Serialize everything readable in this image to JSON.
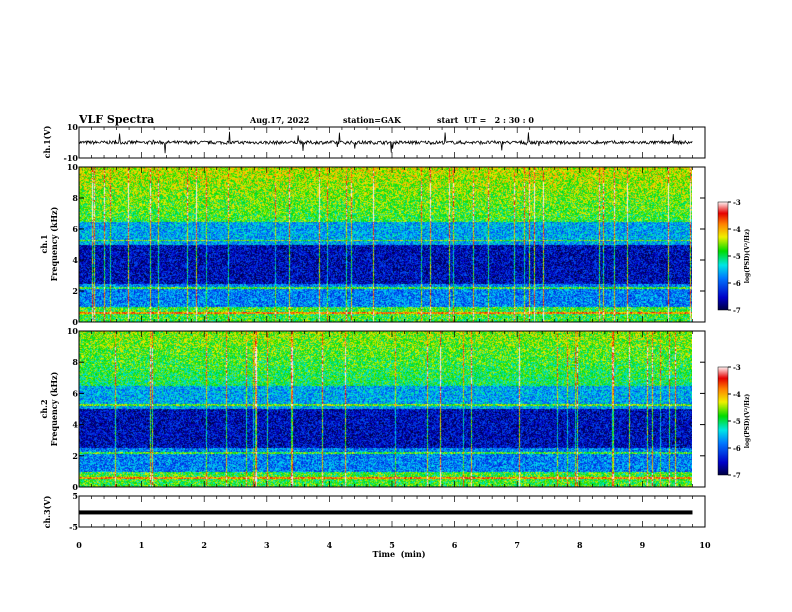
{
  "header": {
    "title": "VLF Spectra",
    "date": "Aug.17, 2022",
    "station": "station=GAK",
    "start": "start  UT =   2 : 30 : 0"
  },
  "chart_data": [
    {
      "type": "line",
      "name": "ch1 waveform",
      "ylabel": "ch.1(V)",
      "ylim": [
        -10,
        10
      ],
      "yticks": [
        "10",
        "-10"
      ],
      "xlim": [
        0,
        10
      ],
      "data_end_min": 9.8,
      "baseline_value": 0
    },
    {
      "type": "heatmap",
      "name": "ch1 spectrogram",
      "ylabel": "ch.1\nFrequency (kHz)",
      "ylabel_line1": "ch.1",
      "ylabel_line2": "Frequency (kHz)",
      "ylim": [
        0,
        10
      ],
      "yticks": [
        "10",
        "8",
        "6",
        "4",
        "2",
        "0"
      ],
      "colorbar": {
        "label": "log(PSD)(V²/Hz)",
        "range": [
          -7,
          -3
        ],
        "ticks": [
          "-3",
          "-4",
          "-5",
          "-6",
          "-7"
        ]
      }
    },
    {
      "type": "heatmap",
      "name": "ch2 spectrogram",
      "ylabel_line1": "ch.2",
      "ylabel_line2": "Frequency (kHz)",
      "ylim": [
        0,
        10
      ],
      "yticks": [
        "10",
        "8",
        "6",
        "4",
        "2",
        "0"
      ],
      "colorbar": {
        "label": "log(PSD)(V²/Hz)",
        "range": [
          -7,
          -3
        ],
        "ticks": [
          "-3",
          "-4",
          "-5",
          "-6",
          "-7"
        ]
      }
    },
    {
      "type": "line",
      "name": "ch3 waveform",
      "ylabel": "ch.3(V)",
      "ylim": [
        -5,
        5
      ],
      "yticks": [
        "5",
        "-5"
      ],
      "constant_value": -0.3,
      "xlabel": "Time  (min)",
      "xlim": [
        0,
        10
      ],
      "xticks": [
        "0",
        "1",
        "2",
        "3",
        "4",
        "5",
        "6",
        "7",
        "8",
        "9",
        "10"
      ]
    }
  ]
}
